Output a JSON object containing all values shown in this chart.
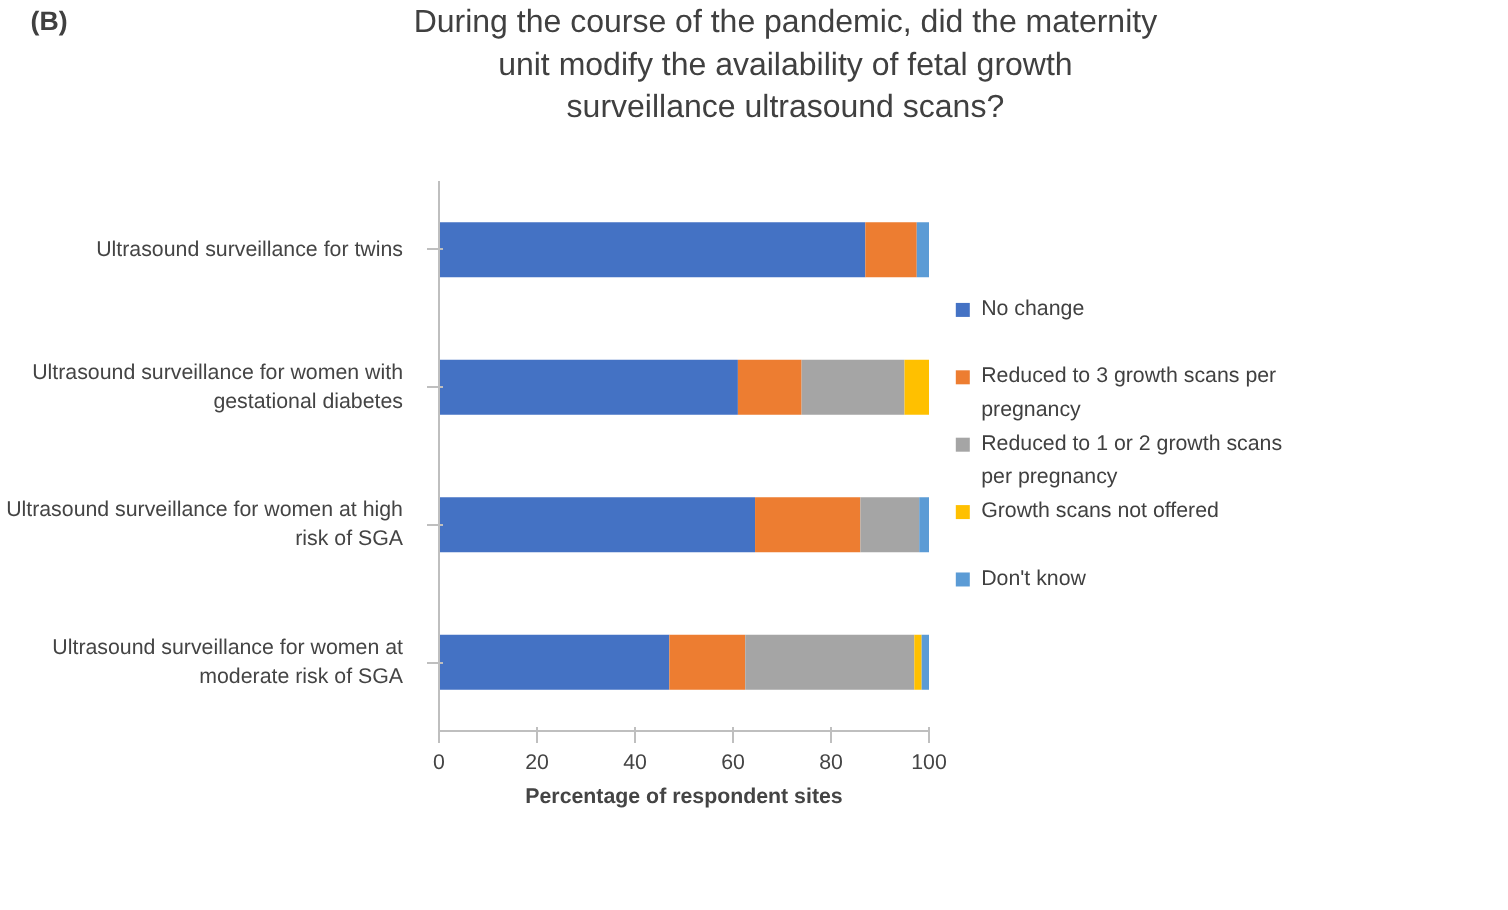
{
  "chart_data": {
    "type": "bar",
    "orientation": "horizontal",
    "stacked": true,
    "title": "During the course of the pandemic, did the maternity unit modify the availability of fetal growth surveillance ultrasound scans?",
    "annotations": [
      "(B)"
    ],
    "xlabel": "Percentage of respondent sites",
    "categories": [
      "Ultrasound surveillance for twins",
      "Ultrasound surveillance for women with gestational diabetes",
      "Ultrasound surveillance for women at high risk of SGA",
      "Ultrasound surveillance for women at moderate risk of SGA"
    ],
    "series": [
      {
        "name": "No change",
        "color": "#4472c4",
        "values": [
          87,
          61,
          64.5,
          47
        ]
      },
      {
        "name": "Reduced to 3 growth scans per pregnancy",
        "color": "#ed7d31",
        "values": [
          10.5,
          13,
          21.5,
          15.5
        ]
      },
      {
        "name": "Reduced to 1 or 2 growth scans per pregnancy",
        "color": "#a5a5a5",
        "values": [
          0,
          21,
          12,
          34.5
        ]
      },
      {
        "name": "Growth scans not offered",
        "color": "#ffc000",
        "values": [
          0,
          5,
          0,
          1.5
        ]
      },
      {
        "name": "Don't know",
        "color": "#5b9bd5",
        "values": [
          2.5,
          0,
          2,
          1.5
        ]
      }
    ],
    "xlim": [
      0,
      100
    ],
    "xticks": [
      0,
      20,
      40,
      60,
      80,
      100
    ],
    "grid": false,
    "legend": "right"
  }
}
